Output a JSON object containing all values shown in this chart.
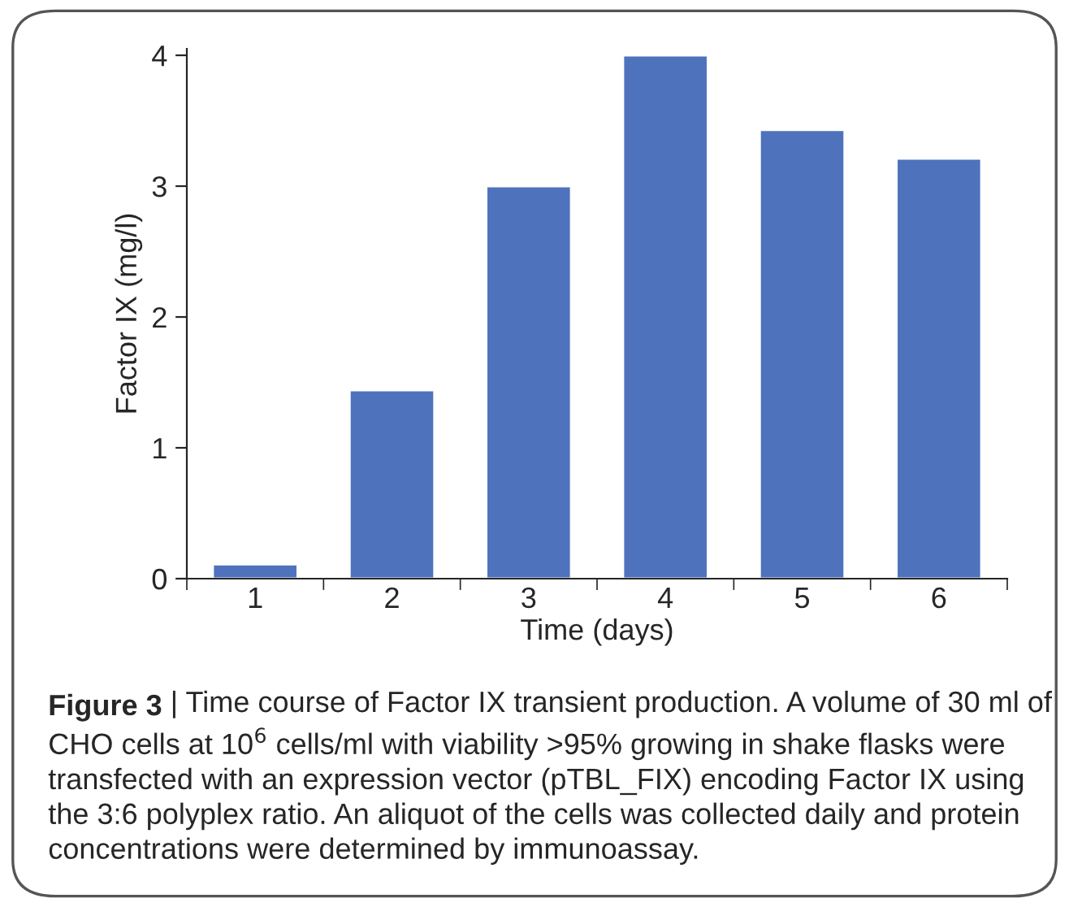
{
  "chart_data": {
    "type": "bar",
    "xlabel": "Time (days)",
    "ylabel": "Factor IX (mg/l)",
    "categories": [
      "1",
      "2",
      "3",
      "4",
      "5",
      "6"
    ],
    "values": [
      0.11,
      1.44,
      3.0,
      4.0,
      3.43,
      3.21
    ],
    "color": "#4f72bd",
    "ylim": [
      0,
      4.05
    ],
    "yticks": [
      0,
      1,
      2,
      3,
      4
    ],
    "grid": false,
    "legend": false,
    "annotations": [
      "Figure 3",
      "| Time course of Factor IX transient production. A volume of 30 ml of CHO cells at 10$^{6}$ cells/ml with viability >95% growing in shake flasks were transfected with an expression vector (pTBL_FIX) encoding Factor IX using the 3:6 polyplex ratio. An aliquot of the cells was collected daily and protein concentrations were determined by immunoassay."
    ]
  }
}
